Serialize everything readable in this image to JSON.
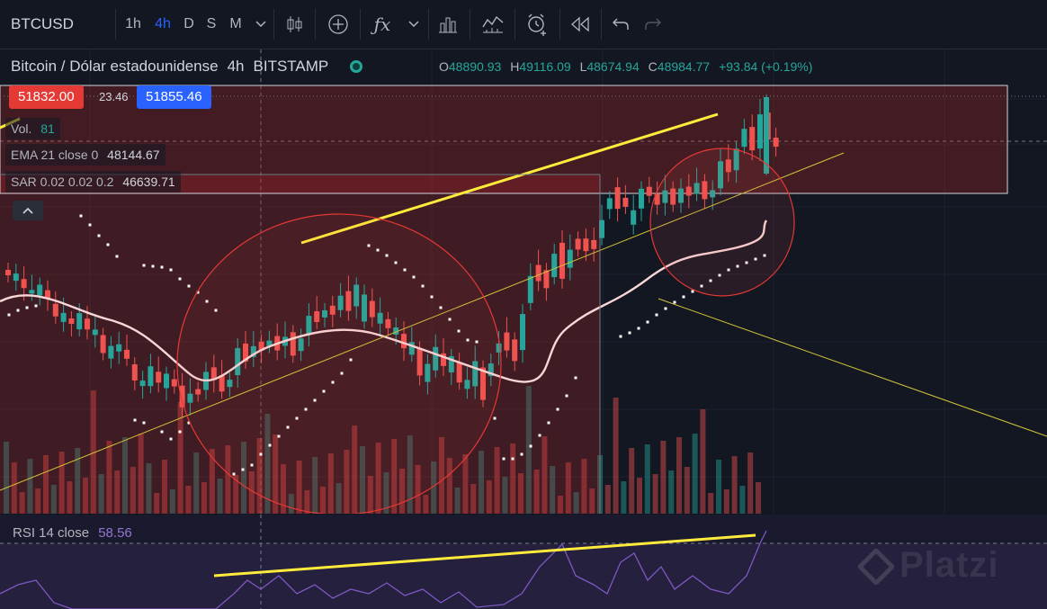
{
  "toolbar": {
    "symbol": "BTCUSD",
    "timeframes": [
      "1h",
      "4h",
      "D",
      "S",
      "M"
    ],
    "active_timeframe": "4h",
    "icons": [
      "chevron-down-icon",
      "candlestick-icon",
      "plus-circle-icon",
      "function-icon",
      "chevron-down-icon",
      "bar-chart-icon",
      "indicators-icon",
      "alarm-icon",
      "replay-icon",
      "undo-icon",
      "redo-icon"
    ]
  },
  "header": {
    "title": "Bitcoin / Dólar estadounidense",
    "interval": "4h",
    "exchange": "BITSTAMP",
    "open_label": "O",
    "open": "48890.93",
    "high_label": "H",
    "high": "49116.09",
    "low_label": "L",
    "low": "48674.94",
    "close_label": "C",
    "close": "48984.77",
    "change": "+93.84 (+0.19%)"
  },
  "quote": {
    "bid": "51832.00",
    "spread": "23.46",
    "ask": "51855.46"
  },
  "indicators": {
    "vol_label": "Vol.",
    "vol_value": "81",
    "ema_label": "EMA 21 close 0",
    "ema_value": "48144.67",
    "sar_label": "SAR 0.02 0.02 0.2",
    "sar_value": "46639.71"
  },
  "rsi": {
    "label": "RSI 14 close",
    "value": "58.56"
  },
  "watermark": "Platzi",
  "colors": {
    "background": "#131722",
    "bull": "#26a69a",
    "bear": "#ef5350",
    "accent": "#2962ff",
    "trendline": "#ffeb3b",
    "ema": "#f8d7d7",
    "rsi": "#7e57c2"
  }
}
